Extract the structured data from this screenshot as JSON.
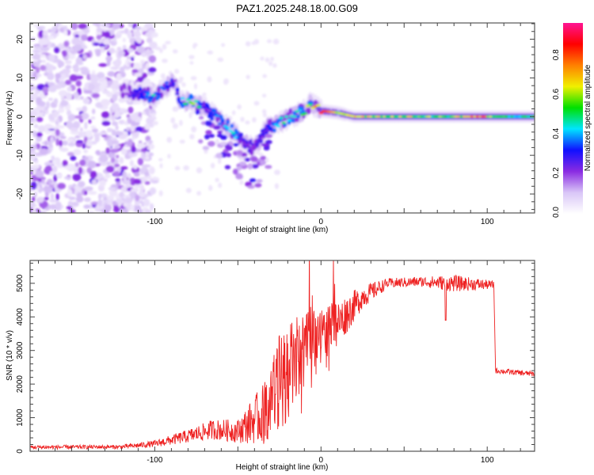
{
  "title": "PAZ1.2025.248.18.00.G09",
  "chart_data": [
    {
      "type": "heatmap",
      "name": "spectrogram",
      "xlabel": "Height of straight line (km)",
      "ylabel": "Frequency (Hz)",
      "xlim": [
        -175,
        128.5
      ],
      "ylim": [
        -24.9,
        24.2
      ],
      "xticks": [
        -100,
        0,
        100
      ],
      "yticks": [
        -20,
        -10,
        0,
        10,
        20
      ],
      "colorbar": {
        "label": "Normalized spectral amplitude",
        "range": [
          0.0,
          0.97
        ],
        "ticks": [
          "0.0",
          "0.2",
          "0.4",
          "0.6",
          "0.8"
        ],
        "colormap": [
          "#ffffff",
          "#d9c6f7",
          "#8a2be2",
          "#1010ff",
          "#00e5ff",
          "#00e000",
          "#f0f000",
          "#ff8000",
          "#ff0000",
          "#ff1493"
        ]
      },
      "noise_region_km": [
        -175,
        -105
      ],
      "ridge": [
        {
          "km": -120,
          "hz": 7.0,
          "amp": 0.22
        },
        {
          "km": -110,
          "hz": 6.0,
          "amp": 0.3
        },
        {
          "km": -100,
          "hz": 5.5,
          "amp": 0.45
        },
        {
          "km": -88,
          "hz": 9.5,
          "amp": 0.28
        },
        {
          "km": -85,
          "hz": 4.0,
          "amp": 0.35
        },
        {
          "km": -78,
          "hz": 4.0,
          "amp": 0.7
        },
        {
          "km": -70,
          "hz": 2.5,
          "amp": 0.3
        },
        {
          "km": -62,
          "hz": -0.5,
          "amp": 0.4
        },
        {
          "km": -55,
          "hz": -3.0,
          "amp": 0.55
        },
        {
          "km": -48,
          "hz": -6.0,
          "amp": 0.3
        },
        {
          "km": -40,
          "hz": -8.5,
          "amp": 0.25
        },
        {
          "km": -33,
          "hz": -3.0,
          "amp": 0.3
        },
        {
          "km": -25,
          "hz": -1.5,
          "amp": 0.45
        },
        {
          "km": -18,
          "hz": 0.0,
          "amp": 0.5
        },
        {
          "km": -10,
          "hz": 1.5,
          "amp": 0.55
        },
        {
          "km": -6,
          "hz": 3.5,
          "amp": 0.65
        },
        {
          "km": 0,
          "hz": 1.5,
          "amp": 0.85
        },
        {
          "km": 10,
          "hz": 1.0,
          "amp": 0.7
        },
        {
          "km": 20,
          "hz": 0.0,
          "amp": 0.8
        },
        {
          "km": 35,
          "hz": 0.0,
          "amp": 0.7
        },
        {
          "km": 55,
          "hz": 0.0,
          "amp": 0.65
        },
        {
          "km": 75,
          "hz": 0.0,
          "amp": 0.6
        },
        {
          "km": 95,
          "hz": 0.0,
          "amp": 0.85
        },
        {
          "km": 110,
          "hz": 0.0,
          "amp": 0.55
        },
        {
          "km": 128,
          "hz": 0.0,
          "amp": 0.55
        }
      ]
    },
    {
      "type": "line",
      "name": "snr",
      "xlabel": "Height of straight line (km)",
      "ylabel": "SNR (10 * v/v)",
      "xlim": [
        -175,
        128.5
      ],
      "ylim": [
        0,
        5680
      ],
      "xticks": [
        -100,
        0,
        100
      ],
      "yticks": [
        0,
        1000,
        2000,
        3000,
        4000,
        5000
      ],
      "color": "#ee2222",
      "envelope": [
        {
          "km": -175,
          "snr": 120,
          "noise": 60
        },
        {
          "km": -120,
          "snr": 130,
          "noise": 60
        },
        {
          "km": -100,
          "snr": 220,
          "noise": 100
        },
        {
          "km": -80,
          "snr": 450,
          "noise": 200
        },
        {
          "km": -65,
          "snr": 650,
          "noise": 300
        },
        {
          "km": -50,
          "snr": 600,
          "noise": 350
        },
        {
          "km": -35,
          "snr": 1100,
          "noise": 900
        },
        {
          "km": -25,
          "snr": 2000,
          "noise": 1500
        },
        {
          "km": -15,
          "snr": 2700,
          "noise": 1300
        },
        {
          "km": -5,
          "snr": 3300,
          "noise": 900
        },
        {
          "km": 10,
          "snr": 3800,
          "noise": 700
        },
        {
          "km": 25,
          "snr": 4600,
          "noise": 350
        },
        {
          "km": 40,
          "snr": 5000,
          "noise": 150
        },
        {
          "km": 60,
          "snr": 5050,
          "noise": 150
        },
        {
          "km": 80,
          "snr": 5000,
          "noise": 250
        },
        {
          "km": 104,
          "snr": 4950,
          "noise": 120
        },
        {
          "km": 105,
          "snr": 2400,
          "noise": 80
        },
        {
          "km": 128,
          "snr": 2300,
          "noise": 80
        }
      ]
    }
  ]
}
